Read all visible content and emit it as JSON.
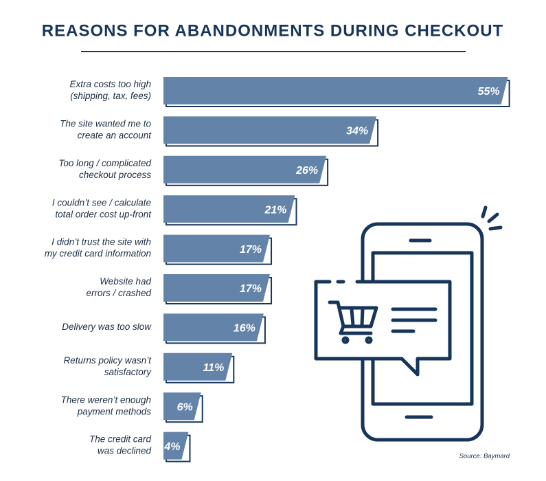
{
  "chart_data": {
    "type": "bar",
    "title": "REASONS FOR ABANDONMENTS DURING CHECKOUT",
    "categories": [
      [
        "Extra costs too high",
        "(shipping, tax, fees)"
      ],
      [
        "The site wanted me to",
        "create an account"
      ],
      [
        "Too long / complicated",
        "checkout process"
      ],
      [
        "I couldn’t see / calculate",
        "total order cost up-front"
      ],
      [
        "I didn’t trust the site with",
        "my credit card information"
      ],
      [
        "Website had",
        "errors / crashed"
      ],
      [
        "Delivery was too slow"
      ],
      [
        "Returns policy wasn’t",
        "satisfactory"
      ],
      [
        "There weren’t enough",
        "payment methods"
      ],
      [
        "The credit card",
        "was declined"
      ]
    ],
    "values": [
      55,
      34,
      26,
      21,
      17,
      17,
      16,
      11,
      6,
      4
    ],
    "value_labels": [
      "55%",
      "34%",
      "26%",
      "21%",
      "17%",
      "17%",
      "16%",
      "11%",
      "6%",
      "4%"
    ],
    "color": "#6383a8",
    "source": "Source: Baymard"
  }
}
